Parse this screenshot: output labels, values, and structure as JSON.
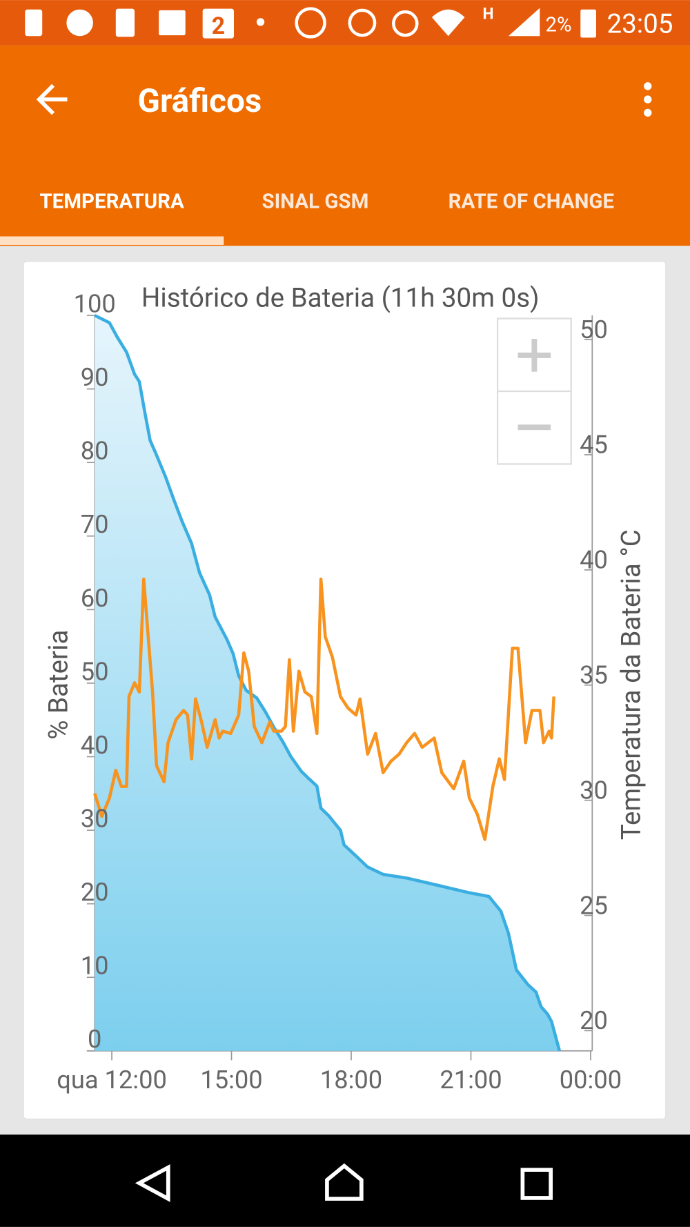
{
  "status_bar": {
    "network": "H",
    "badge": "2",
    "battery": "2%",
    "time": "23:05"
  },
  "app_bar": {
    "title": "Gráficos"
  },
  "tabs": [
    "TEMPERATURA",
    "SINAL GSM",
    "RATE OF CHANGE"
  ],
  "chart_data": {
    "type": "line",
    "title": "Histórico de Bateria (11h 30m 0s)",
    "ylabel": "% Bateria",
    "y2label": "Temperatura da Bateria °C",
    "xlim": [
      11.57,
      24.04
    ],
    "xticks": [
      {
        "value": 12,
        "label": "qua 12:00"
      },
      {
        "value": 15,
        "label": "15:00"
      },
      {
        "value": 18,
        "label": "18:00"
      },
      {
        "value": 21,
        "label": "21:00"
      },
      {
        "value": 24,
        "label": "00:00"
      }
    ],
    "ylim": [
      0,
      100
    ],
    "yticks": [
      0,
      10,
      20,
      30,
      40,
      50,
      60,
      70,
      80,
      90,
      100
    ],
    "y2lim": [
      19.12,
      51.05
    ],
    "y2ticks": [
      20,
      25,
      30,
      35,
      40,
      45,
      50
    ],
    "series": [
      {
        "color": "#3aaee0",
        "fill": true,
        "axis": "y",
        "x": [
          11.57,
          11.94,
          12.14,
          12.37,
          12.57,
          12.69,
          12.82,
          12.96,
          13.12,
          13.35,
          13.55,
          13.76,
          14.0,
          14.2,
          14.45,
          14.59,
          14.88,
          15.04,
          15.18,
          15.37,
          15.63,
          15.86,
          16.06,
          16.29,
          16.49,
          16.75,
          16.94,
          17.14,
          17.24,
          17.43,
          17.73,
          17.82,
          18.12,
          18.41,
          18.8,
          19.39,
          20.18,
          20.96,
          21.45,
          21.75,
          21.94,
          22.14,
          22.43,
          22.63,
          22.76,
          22.92,
          23.02,
          23.12,
          23.22
        ],
        "values": [
          100,
          99,
          97,
          95,
          92,
          91,
          87,
          83,
          81,
          78,
          75,
          72,
          69,
          65,
          62,
          59,
          56,
          54,
          51,
          49,
          48,
          46,
          44,
          42,
          40,
          38,
          37,
          36,
          33,
          32,
          30,
          28,
          26.5,
          25,
          24,
          23.5,
          22.5,
          21.5,
          21,
          19,
          16,
          11,
          9,
          8,
          6,
          5,
          4,
          2,
          0
        ]
      },
      {
        "color": "#f7931e",
        "fill": false,
        "axis": "y2",
        "x": [
          11.57,
          11.75,
          11.94,
          12.1,
          12.24,
          12.37,
          12.43,
          12.57,
          12.69,
          12.8,
          12.92,
          13.02,
          13.12,
          13.31,
          13.41,
          13.61,
          13.8,
          13.9,
          14.0,
          14.1,
          14.25,
          14.39,
          14.59,
          14.69,
          14.78,
          14.98,
          15.18,
          15.31,
          15.43,
          15.57,
          15.76,
          15.96,
          16.06,
          16.25,
          16.35,
          16.45,
          16.55,
          16.69,
          16.84,
          17.0,
          17.14,
          17.24,
          17.35,
          17.53,
          17.73,
          17.92,
          18.12,
          18.22,
          18.41,
          18.61,
          18.8,
          19.0,
          19.2,
          19.39,
          19.59,
          19.78,
          20.08,
          20.27,
          20.57,
          20.82,
          20.96,
          21.16,
          21.35,
          21.55,
          21.71,
          21.84,
          22.04,
          22.18,
          22.37,
          22.53,
          22.73,
          22.82,
          22.96,
          23.02,
          23.08
        ],
        "values": [
          30.3,
          29.3,
          30.1,
          31.3,
          30.6,
          30.6,
          34.5,
          35.1,
          34.7,
          39.6,
          36.9,
          34.7,
          31.5,
          30.8,
          32.5,
          33.5,
          33.9,
          33.7,
          31.8,
          34.4,
          33.4,
          32.3,
          33.5,
          32.7,
          33.0,
          32.9,
          33.7,
          36.4,
          35.6,
          33.2,
          32.5,
          33.4,
          33.0,
          33.0,
          33.2,
          36.1,
          33.0,
          35.6,
          34.7,
          34.5,
          32.9,
          39.6,
          37.1,
          36.2,
          34.5,
          34.0,
          33.7,
          34.4,
          32.0,
          32.9,
          31.2,
          31.7,
          32.0,
          32.5,
          32.9,
          32.3,
          32.7,
          31.2,
          30.5,
          31.7,
          30.1,
          29.4,
          28.3,
          30.6,
          31.8,
          30.9,
          36.6,
          36.6,
          32.5,
          33.9,
          33.9,
          32.5,
          33.0,
          32.7,
          34.5
        ]
      }
    ]
  }
}
